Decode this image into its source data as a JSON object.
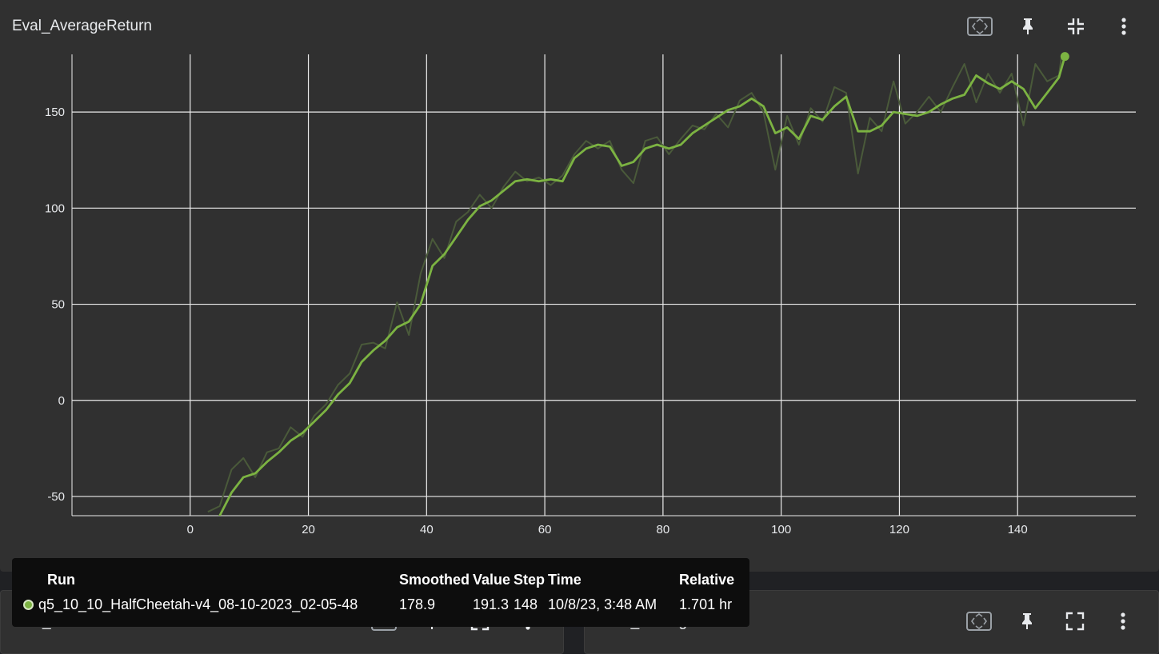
{
  "main_card": {
    "title": "Eval_AverageReturn"
  },
  "toolbar_icons": [
    "fit-domain-icon",
    "pin-icon",
    "collapse-icon",
    "more-vert-icon"
  ],
  "bottom_cards": [
    {
      "title": "Eval_MaxReturn"
    },
    {
      "title": "Train_AverageReturn"
    }
  ],
  "tooltip": {
    "headers": {
      "run": "Run",
      "smoothed": "Smoothed",
      "value": "Value",
      "step": "Step",
      "time": "Time",
      "relative": "Relative"
    },
    "row": {
      "run": "q5_10_10_HalfCheetah-v4_08-10-2023_02-05-48",
      "smoothed": "178.9",
      "value": "191.3",
      "step": "148",
      "time": "10/8/23, 3:48 AM",
      "relative": "1.701 hr"
    }
  },
  "colors": {
    "smoothed_line": "#7cb342",
    "raw_line": "#4a5a3a",
    "grid": "#ebebeb",
    "panel": "#303030"
  },
  "chart_data": {
    "type": "line",
    "title": "Eval_AverageReturn",
    "xlabel": "",
    "ylabel": "",
    "xlim": [
      -20,
      160
    ],
    "ylim": [
      -60,
      180
    ],
    "x_ticks": [
      0,
      20,
      40,
      60,
      80,
      100,
      120,
      140
    ],
    "y_ticks": [
      -50,
      0,
      50,
      100,
      150
    ],
    "grid": true,
    "series": [
      {
        "role": "smoothed",
        "x": [
          3,
          5,
          7,
          9,
          11,
          13,
          15,
          17,
          19,
          21,
          23,
          25,
          27,
          29,
          31,
          33,
          35,
          37,
          39,
          41,
          43,
          45,
          47,
          49,
          51,
          53,
          55,
          57,
          59,
          61,
          63,
          65,
          67,
          69,
          71,
          73,
          75,
          77,
          79,
          81,
          83,
          85,
          87,
          89,
          91,
          93,
          95,
          97,
          99,
          101,
          103,
          105,
          107,
          109,
          111,
          113,
          115,
          117,
          119,
          121,
          123,
          125,
          127,
          129,
          131,
          133,
          135,
          137,
          139,
          141,
          143,
          145,
          147,
          148
        ],
        "y": [
          -66,
          -60,
          -48,
          -40,
          -38,
          -32,
          -27,
          -21,
          -17,
          -11,
          -5,
          3,
          9,
          20,
          26,
          31,
          38,
          41,
          50,
          70,
          76,
          85,
          94,
          101,
          104,
          109,
          114,
          115,
          114,
          115,
          114,
          126,
          131,
          133,
          132,
          122,
          124,
          131,
          133,
          131,
          133,
          139,
          143,
          147,
          151,
          153,
          157,
          153,
          139,
          142,
          136,
          148,
          146,
          153,
          158,
          140,
          140,
          143,
          150,
          149,
          148,
          150,
          154,
          157,
          159,
          169,
          165,
          162,
          166,
          162,
          152,
          160,
          168,
          178.9
        ]
      },
      {
        "role": "raw",
        "x": [
          3,
          5,
          7,
          9,
          11,
          13,
          15,
          17,
          19,
          21,
          23,
          25,
          27,
          29,
          31,
          33,
          35,
          37,
          39,
          41,
          43,
          45,
          47,
          49,
          51,
          53,
          55,
          57,
          59,
          61,
          63,
          65,
          67,
          69,
          71,
          73,
          75,
          77,
          79,
          81,
          83,
          85,
          87,
          89,
          91,
          93,
          95,
          97,
          99,
          101,
          103,
          105,
          107,
          109,
          111,
          113,
          115,
          117,
          119,
          121,
          123,
          125,
          127,
          129,
          131,
          133,
          135,
          137,
          139,
          141,
          143,
          145,
          147,
          148
        ],
        "y": [
          -58,
          -55,
          -36,
          -30,
          -40,
          -27,
          -25,
          -14,
          -19,
          -8,
          -2,
          8,
          14,
          29,
          30,
          27,
          51,
          34,
          66,
          84,
          74,
          93,
          98,
          107,
          100,
          111,
          119,
          114,
          116,
          112,
          117,
          128,
          135,
          131,
          135,
          120,
          113,
          135,
          137,
          128,
          136,
          143,
          141,
          149,
          142,
          156,
          160,
          150,
          120,
          148,
          133,
          152,
          145,
          163,
          160,
          118,
          147,
          140,
          166,
          144,
          150,
          158,
          150,
          163,
          175,
          155,
          170,
          160,
          170,
          143,
          175,
          166,
          169,
          191.3
        ]
      }
    ],
    "legend": "none"
  }
}
